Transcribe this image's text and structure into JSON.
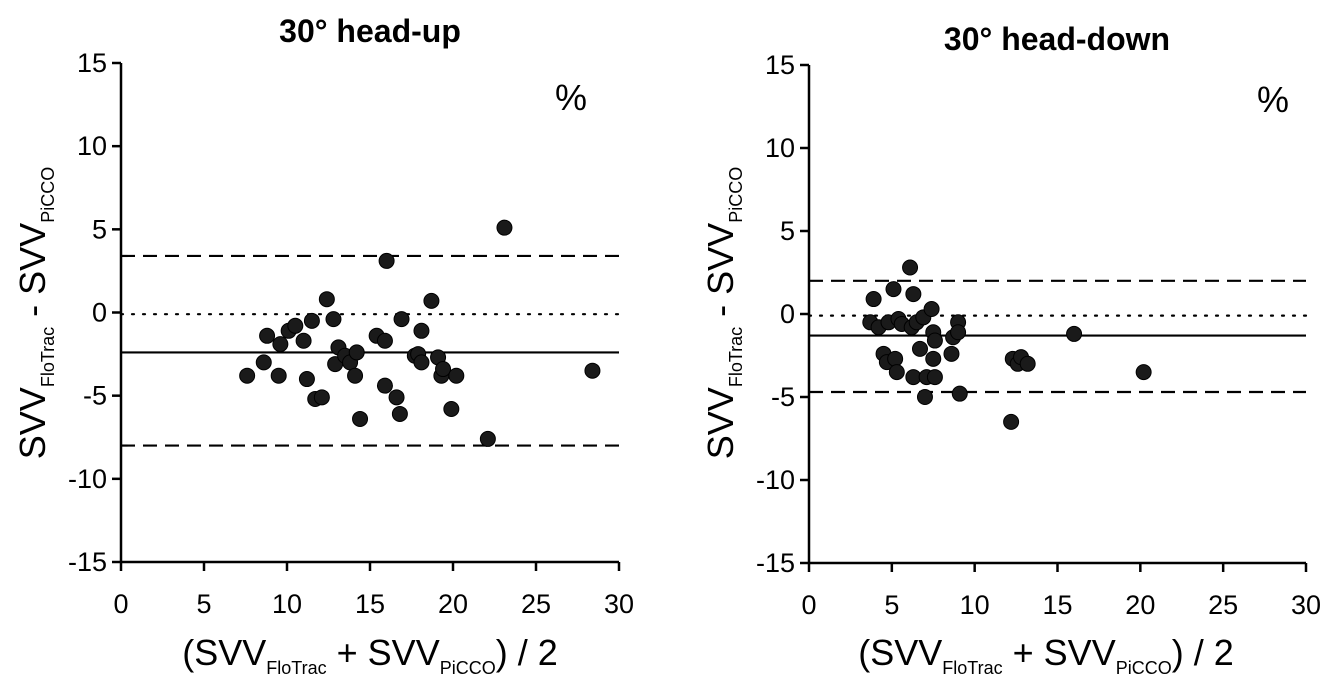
{
  "chart_data": [
    {
      "type": "scatter",
      "title": "30° head-up",
      "unit": "%",
      "xlabel": {
        "main": "SVV",
        "sub1": "FloTrac",
        "sub2": "PiCCO",
        "full": "(SVV_FloTrac + SVV_PiCCO) / 2"
      },
      "ylabel": {
        "main": "SVV",
        "sub1": "FloTrac",
        "sub2": "PiCCO",
        "full": "SVV_FloTrac - SVV_PiCCO"
      },
      "xlim": [
        0,
        30
      ],
      "ylim": [
        -15,
        15
      ],
      "xticks": [
        0,
        5,
        10,
        15,
        20,
        25,
        30
      ],
      "yticks": [
        15,
        10,
        5,
        0,
        -5,
        -10,
        -15
      ],
      "grid": false,
      "mean_bias": -2.4,
      "limits_of_agreement": [
        3.4,
        -8.0
      ],
      "zero_line": -0.1,
      "points": [
        [
          7.6,
          -3.8
        ],
        [
          8.6,
          -3.0
        ],
        [
          8.8,
          -1.4
        ],
        [
          9.5,
          -3.8
        ],
        [
          9.6,
          -1.9
        ],
        [
          10.1,
          -1.1
        ],
        [
          10.5,
          -0.8
        ],
        [
          11.0,
          -1.7
        ],
        [
          11.2,
          -4.0
        ],
        [
          11.5,
          -0.5
        ],
        [
          11.7,
          -5.2
        ],
        [
          12.1,
          -5.1
        ],
        [
          12.4,
          0.8
        ],
        [
          12.8,
          -0.4
        ],
        [
          12.9,
          -3.1
        ],
        [
          13.1,
          -2.1
        ],
        [
          13.5,
          -2.6
        ],
        [
          13.8,
          -3.0
        ],
        [
          14.1,
          -3.8
        ],
        [
          14.2,
          -2.4
        ],
        [
          14.4,
          -6.4
        ],
        [
          15.4,
          -1.4
        ],
        [
          15.9,
          -1.7
        ],
        [
          15.9,
          -4.4
        ],
        [
          16.0,
          3.1
        ],
        [
          16.6,
          -5.1
        ],
        [
          16.8,
          -6.1
        ],
        [
          16.9,
          -0.4
        ],
        [
          17.7,
          -2.6
        ],
        [
          17.9,
          -2.5
        ],
        [
          18.1,
          -1.1
        ],
        [
          18.1,
          -3.0
        ],
        [
          18.7,
          0.7
        ],
        [
          19.1,
          -2.7
        ],
        [
          19.3,
          -3.8
        ],
        [
          19.4,
          -3.4
        ],
        [
          19.9,
          -5.8
        ],
        [
          20.2,
          -3.8
        ],
        [
          22.1,
          -7.6
        ],
        [
          23.1,
          5.1
        ],
        [
          28.4,
          -3.5
        ]
      ]
    },
    {
      "type": "scatter",
      "title": "30° head-down",
      "unit": "%",
      "xlabel": {
        "main": "SVV",
        "sub1": "FloTrac",
        "sub2": "PiCCO",
        "full": "(SVV_FloTrac + SVV_PiCCO) / 2"
      },
      "ylabel": {
        "main": "SVV",
        "sub1": "FloTrac",
        "sub2": "PiCCO",
        "full": "SVV_FloTrac - SVV_PiCCO"
      },
      "xlim": [
        0,
        30
      ],
      "ylim": [
        -15,
        15
      ],
      "xticks": [
        0,
        5,
        10,
        15,
        20,
        25,
        30
      ],
      "yticks": [
        15,
        10,
        5,
        0,
        -5,
        -10,
        -15
      ],
      "grid": false,
      "mean_bias": -1.3,
      "limits_of_agreement": [
        2.0,
        -4.7
      ],
      "zero_line": -0.1,
      "points": [
        [
          3.7,
          -0.5
        ],
        [
          3.9,
          0.9
        ],
        [
          4.2,
          -0.8
        ],
        [
          4.5,
          -2.4
        ],
        [
          4.7,
          -2.9
        ],
        [
          4.8,
          -0.5
        ],
        [
          5.1,
          1.5
        ],
        [
          5.2,
          -2.7
        ],
        [
          5.3,
          -3.5
        ],
        [
          5.4,
          -0.3
        ],
        [
          5.6,
          -0.6
        ],
        [
          6.1,
          2.8
        ],
        [
          6.2,
          -0.8
        ],
        [
          6.3,
          1.2
        ],
        [
          6.3,
          -3.8
        ],
        [
          6.5,
          -0.5
        ],
        [
          6.7,
          -2.1
        ],
        [
          6.9,
          -0.2
        ],
        [
          7.0,
          -5.0
        ],
        [
          7.1,
          -3.8
        ],
        [
          7.4,
          0.3
        ],
        [
          7.5,
          -1.1
        ],
        [
          7.5,
          -2.7
        ],
        [
          7.6,
          -1.6
        ],
        [
          7.6,
          -3.8
        ],
        [
          8.6,
          -2.4
        ],
        [
          8.7,
          -1.4
        ],
        [
          9.0,
          -0.5
        ],
        [
          9.0,
          -1.1
        ],
        [
          9.1,
          -4.8
        ],
        [
          12.2,
          -6.5
        ],
        [
          12.3,
          -2.7
        ],
        [
          12.6,
          -3.0
        ],
        [
          12.8,
          -2.6
        ],
        [
          13.2,
          -3.0
        ],
        [
          16.0,
          -1.2
        ],
        [
          20.2,
          -3.5
        ]
      ]
    }
  ]
}
